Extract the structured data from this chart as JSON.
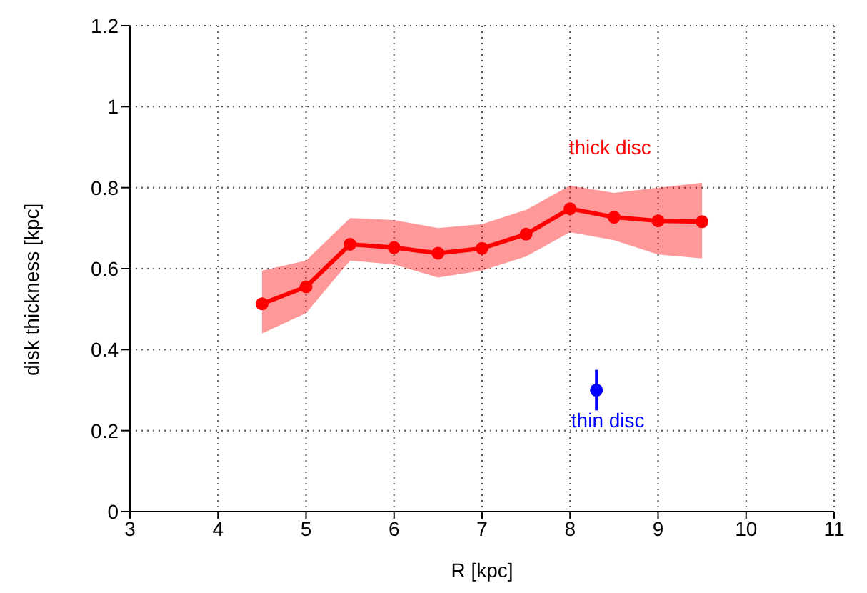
{
  "chart_data": {
    "type": "line",
    "xlabel": "R [kpc]",
    "ylabel": "disk thickness [kpc]",
    "xlim": [
      3,
      11
    ],
    "xticks": [
      3,
      4,
      5,
      6,
      7,
      8,
      9,
      10,
      11
    ],
    "ylim": [
      0,
      1.2
    ],
    "yticks": [
      0,
      0.2,
      0.4,
      0.6,
      0.8,
      1,
      1.2
    ],
    "grid": true,
    "marker": "circle",
    "line_style": "solid",
    "series": [
      {
        "name": "thick disc",
        "color": "#ff0000",
        "x": [
          4.5,
          5,
          5.5,
          6,
          6.5,
          7,
          7.5,
          8,
          8.5,
          9,
          9.5
        ],
        "values": [
          0.513,
          0.555,
          0.66,
          0.652,
          0.638,
          0.65,
          0.685,
          0.748,
          0.727,
          0.718,
          0.716
        ],
        "lower": [
          0.44,
          0.49,
          0.62,
          0.61,
          0.578,
          0.595,
          0.63,
          0.69,
          0.67,
          0.635,
          0.625
        ],
        "upper": [
          0.595,
          0.62,
          0.725,
          0.72,
          0.7,
          0.71,
          0.745,
          0.805,
          0.787,
          0.8,
          0.812
        ]
      },
      {
        "name": "thin disc",
        "type": "scatter",
        "color": "#0000ff",
        "x": [
          8.3
        ],
        "values": [
          0.3
        ],
        "errors": [
          0.05
        ]
      }
    ]
  }
}
